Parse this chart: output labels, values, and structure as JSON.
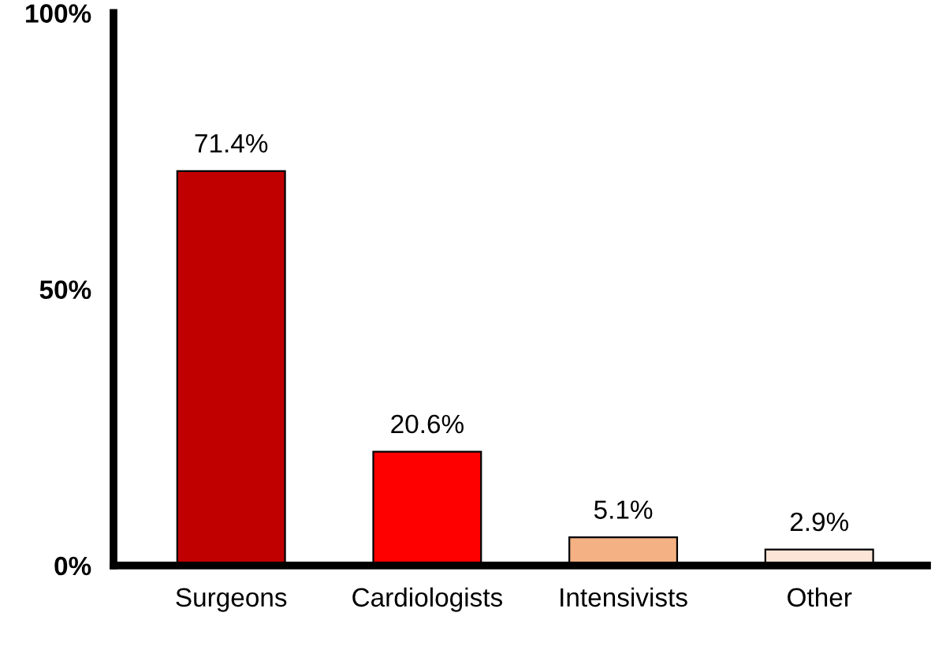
{
  "chart_data": {
    "type": "bar",
    "categories": [
      "Surgeons",
      "Cardiologists",
      "Intensivists",
      "Other"
    ],
    "values": [
      71.4,
      20.6,
      5.1,
      2.9
    ],
    "colors": [
      "#c00000",
      "#ff0000",
      "#f4b183",
      "#fbe5d6"
    ],
    "value_labels": [
      "71.4%",
      "20.6%",
      "5.1%",
      "2.9%"
    ],
    "ylim": [
      0,
      100
    ],
    "yticks": [
      {
        "value": 0,
        "label": "0%"
      },
      {
        "value": 50,
        "label": "50%"
      },
      {
        "value": 100,
        "label": "100%"
      }
    ],
    "grid": false
  }
}
